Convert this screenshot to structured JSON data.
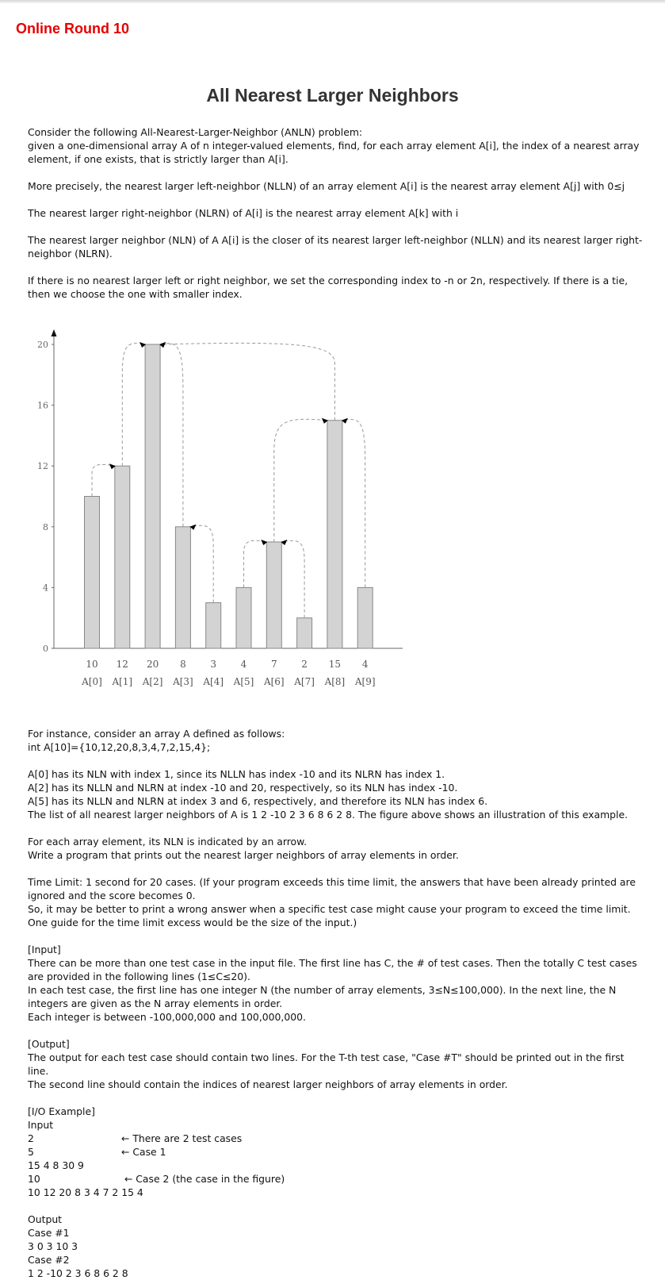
{
  "header": {
    "round": "Online Round 10"
  },
  "problem": {
    "title": "All Nearest Larger Neighbors",
    "intro": [
      "Consider the following All-Nearest-Larger-Neighbor (ANLN) problem:",
      "given a one-dimensional array A of n integer-valued elements, find, for each array element A[i], the index of a nearest array element, if one exists, that is strictly larger than A[i]."
    ],
    "nlln": "More precisely, the nearest larger left-neighbor (NLLN) of an array element A[i] is the nearest array element A[j] with 0≤j",
    "nlrn": "The nearest larger right-neighbor (NLRN) of A[i] is the nearest array element A[k] with i",
    "nln": "The nearest larger neighbor (NLN) of A A[i] is the closer of its nearest larger left-neighbor (NLLN) and its nearest larger right-neighbor (NLRN).",
    "tie": "If there is no nearest larger left or right neighbor, we set the corresponding index to -n or 2n, respectively. If there is a tie, then we choose the one with smaller index.",
    "instance_1": "For instance, consider an array A defined as follows:",
    "instance_2": "int  A[10]={10,12,20,8,3,4,7,2,15,4};",
    "explain": [
      "A[0] has its NLN with index 1, since its NLLN has index -10 and its NLRN has index 1.",
      "A[2] has its NLLN and NLRN at index -10 and 20, respectively, so its NLN has index -10.",
      "A[5] has its NLLN and NLRN at index 3 and 6, respectively, and therefore its NLN has index 6.",
      "The list of all nearest larger neighbors of A is 1 2 -10 2 3 6 8 6 2 8. The figure above shows an illustration of this example."
    ],
    "arrow_note": [
      "For each array element, its NLN is indicated by an arrow.",
      "Write a program that prints out the nearest larger neighbors of array elements in order."
    ],
    "time_limit": [
      "Time Limit: 1 second for 20 cases. (If your program exceeds this time limit, the answers that have been already printed are ignored and the score becomes 0.",
      "So, it may be better to print a wrong answer when a specific test case might cause your program to exceed the time limit. One guide for the time limit excess would be the size of the input.)"
    ],
    "input_section": {
      "heading": "[Input]",
      "lines": [
        "There can be more than one test case in the input file. The first line has C, the # of test cases. Then the totally C test cases are provided in the following lines (1≤C≤20).",
        "In each test case, the first line has one integer N (the number of array elements, 3≤N≤100,000). In the next line, the N integers are given as the N array elements in order.",
        "Each integer is between -100,000,000 and 100,000,000."
      ]
    },
    "output_section": {
      "heading": "[Output]",
      "lines": [
        "The output for each test case should contain two lines. For the T-th test case, \"Case #T\" should be printed out in the first line.",
        "The second line should contain the indices of nearest larger neighbors of array elements in order."
      ]
    },
    "io_example": {
      "heading": "[I/O Example]",
      "input_label": "Input",
      "input_lines": [
        {
          "text": "2",
          "note": "← There are 2 test cases"
        },
        {
          "text": "5",
          "note": "← Case 1"
        },
        {
          "text": "15 4 8 30 9",
          "note": ""
        },
        {
          "text": "10",
          "note": " ← Case 2 (the case in the figure)"
        },
        {
          "text": "10 12 20 8 3 4 7 2 15 4",
          "note": ""
        }
      ],
      "output_label": "Output",
      "output_lines": [
        "Case #1",
        "3 0 3 10 3",
        "Case #2",
        "1 2 -10 2 3 6 8 6 2 8"
      ]
    }
  },
  "chart_data": {
    "type": "bar",
    "categories": [
      "A[0]",
      "A[1]",
      "A[2]",
      "A[3]",
      "A[4]",
      "A[5]",
      "A[6]",
      "A[7]",
      "A[8]",
      "A[9]"
    ],
    "value_labels": [
      "10",
      "12",
      "20",
      "8",
      "3",
      "4",
      "7",
      "2",
      "15",
      "4"
    ],
    "values": [
      10,
      12,
      20,
      8,
      3,
      4,
      7,
      2,
      15,
      4
    ],
    "nln": [
      1,
      2,
      -10,
      2,
      3,
      6,
      8,
      6,
      2,
      8
    ],
    "ylim": [
      0,
      20
    ],
    "yticks": [
      0,
      4,
      8,
      12,
      16,
      20
    ],
    "bar_color": "#d3d3d3",
    "bar_edge": "#888888",
    "arrow_color": "#000000",
    "dash_color": "#999999"
  }
}
